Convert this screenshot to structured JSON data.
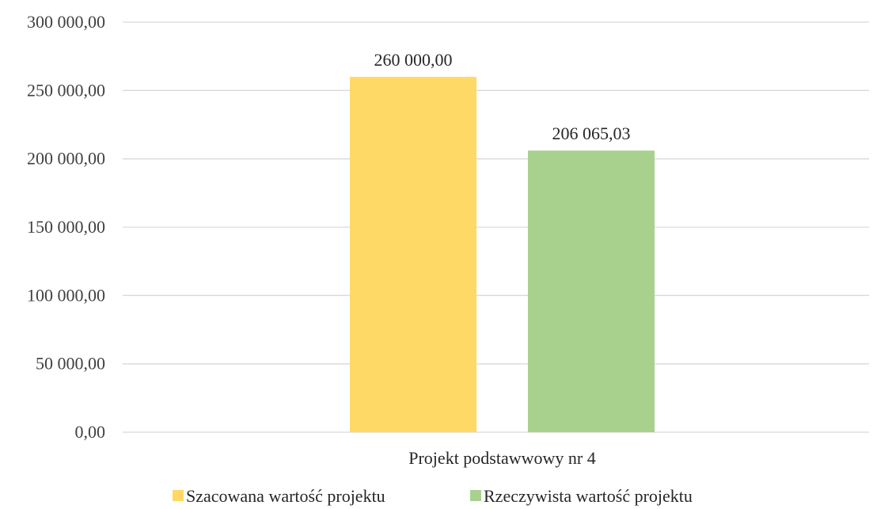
{
  "chart_data": {
    "type": "bar",
    "categories": [
      "Projekt podstawwowy nr 4"
    ],
    "series": [
      {
        "name": "Szacowana wartość projektu",
        "values": [
          260000.0
        ],
        "label": "260 000,00",
        "color": "#FFD966"
      },
      {
        "name": "Rzeczywista wartość projektu",
        "values": [
          206065.03
        ],
        "label": "206 065,03",
        "color": "#A9D18E"
      }
    ],
    "ylim": [
      0,
      300000
    ],
    "yticks": [
      0,
      50000,
      100000,
      150000,
      200000,
      250000,
      300000
    ],
    "ytick_labels": [
      "0,00",
      "50 000,00",
      "100 000,00",
      "150 000,00",
      "200 000,00",
      "250 000,00",
      "300 000,00"
    ],
    "grid": true,
    "legend_position": "bottom",
    "gridline_color": "#D9D9D9"
  }
}
